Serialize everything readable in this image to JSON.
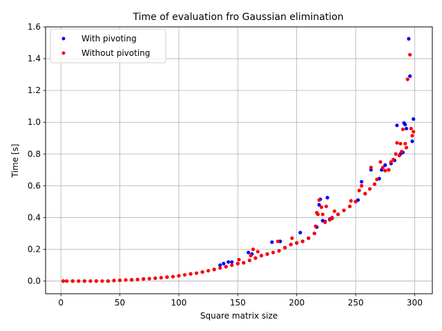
{
  "chart_data": {
    "type": "scatter",
    "title": "Time of evaluation fro Gaussian elimination",
    "xlabel": "Square matrix size",
    "ylabel": "Time [s]",
    "xlim": [
      -13,
      315
    ],
    "ylim": [
      -0.08,
      1.6
    ],
    "xticks": [
      0,
      50,
      100,
      150,
      200,
      250,
      300
    ],
    "yticks": [
      0.0,
      0.2,
      0.4,
      0.6,
      0.8,
      1.0,
      1.2,
      1.4,
      1.6
    ],
    "xtick_labels": [
      "0",
      "50",
      "100",
      "150",
      "200",
      "250",
      "300"
    ],
    "ytick_labels": [
      "0.0",
      "0.2",
      "0.4",
      "0.6",
      "0.8",
      "1.0",
      "1.2",
      "1.4",
      "1.6"
    ],
    "grid": true,
    "legend_position": "upper-left",
    "series": [
      {
        "name": "With pivoting",
        "color": "#0000ff",
        "points": [
          [
            2,
            0.0
          ],
          [
            10,
            0.0
          ],
          [
            20,
            0.0
          ],
          [
            30,
            0.0
          ],
          [
            40,
            0.0
          ],
          [
            50,
            0.005
          ],
          [
            60,
            0.008
          ],
          [
            70,
            0.013
          ],
          [
            80,
            0.018
          ],
          [
            90,
            0.025
          ],
          [
            100,
            0.033
          ],
          [
            110,
            0.045
          ],
          [
            120,
            0.057
          ],
          [
            130,
            0.073
          ],
          [
            135,
            0.1
          ],
          [
            138,
            0.11
          ],
          [
            140,
            0.09
          ],
          [
            142,
            0.12
          ],
          [
            145,
            0.12
          ],
          [
            150,
            0.11
          ],
          [
            155,
            0.115
          ],
          [
            159,
            0.18
          ],
          [
            162,
            0.17
          ],
          [
            165,
            0.145
          ],
          [
            170,
            0.16
          ],
          [
            175,
            0.17
          ],
          [
            179,
            0.245
          ],
          [
            186,
            0.25
          ],
          [
            185,
            0.19
          ],
          [
            190,
            0.21
          ],
          [
            195,
            0.23
          ],
          [
            200,
            0.24
          ],
          [
            203,
            0.305
          ],
          [
            205,
            0.25
          ],
          [
            210,
            0.27
          ],
          [
            215,
            0.3
          ],
          [
            217,
            0.34
          ],
          [
            219,
            0.48
          ],
          [
            220,
            0.515
          ],
          [
            222,
            0.38
          ],
          [
            224,
            0.375
          ],
          [
            226,
            0.525
          ],
          [
            228,
            0.39
          ],
          [
            230,
            0.395
          ],
          [
            235,
            0.42
          ],
          [
            240,
            0.445
          ],
          [
            245,
            0.47
          ],
          [
            250,
            0.5
          ],
          [
            252,
            0.51
          ],
          [
            255,
            0.625
          ],
          [
            258,
            0.55
          ],
          [
            262,
            0.58
          ],
          [
            263,
            0.7
          ],
          [
            266,
            0.61
          ],
          [
            270,
            0.645
          ],
          [
            272,
            0.7
          ],
          [
            275,
            0.73
          ],
          [
            278,
            0.7
          ],
          [
            280,
            0.74
          ],
          [
            283,
            0.76
          ],
          [
            285,
            0.98
          ],
          [
            288,
            0.8
          ],
          [
            290,
            0.81
          ],
          [
            291,
            0.995
          ],
          [
            292,
            0.985
          ],
          [
            293,
            0.96
          ],
          [
            295,
            1.525
          ],
          [
            296,
            1.29
          ],
          [
            298,
            0.88
          ],
          [
            299,
            1.02
          ]
        ]
      },
      {
        "name": "Without pivoting",
        "color": "#ff0000",
        "points": [
          [
            2,
            0.0
          ],
          [
            5,
            0.0
          ],
          [
            10,
            0.0
          ],
          [
            15,
            0.0
          ],
          [
            20,
            0.0
          ],
          [
            25,
            0.0
          ],
          [
            30,
            0.0
          ],
          [
            35,
            0.0
          ],
          [
            40,
            0.0
          ],
          [
            45,
            0.003
          ],
          [
            50,
            0.005
          ],
          [
            55,
            0.007
          ],
          [
            60,
            0.008
          ],
          [
            65,
            0.01
          ],
          [
            70,
            0.013
          ],
          [
            75,
            0.015
          ],
          [
            80,
            0.018
          ],
          [
            85,
            0.021
          ],
          [
            90,
            0.025
          ],
          [
            95,
            0.028
          ],
          [
            100,
            0.033
          ],
          [
            105,
            0.039
          ],
          [
            110,
            0.045
          ],
          [
            115,
            0.05
          ],
          [
            120,
            0.057
          ],
          [
            125,
            0.065
          ],
          [
            130,
            0.073
          ],
          [
            135,
            0.082
          ],
          [
            140,
            0.09
          ],
          [
            145,
            0.1
          ],
          [
            150,
            0.11
          ],
          [
            151,
            0.135
          ],
          [
            155,
            0.115
          ],
          [
            160,
            0.13
          ],
          [
            161,
            0.16
          ],
          [
            163,
            0.2
          ],
          [
            165,
            0.145
          ],
          [
            167,
            0.185
          ],
          [
            170,
            0.16
          ],
          [
            175,
            0.17
          ],
          [
            180,
            0.18
          ],
          [
            184,
            0.25
          ],
          [
            185,
            0.19
          ],
          [
            190,
            0.21
          ],
          [
            195,
            0.23
          ],
          [
            196,
            0.27
          ],
          [
            200,
            0.24
          ],
          [
            205,
            0.25
          ],
          [
            210,
            0.27
          ],
          [
            215,
            0.3
          ],
          [
            216,
            0.345
          ],
          [
            217,
            0.43
          ],
          [
            218,
            0.42
          ],
          [
            219,
            0.51
          ],
          [
            221,
            0.465
          ],
          [
            222,
            0.42
          ],
          [
            224,
            0.37
          ],
          [
            225,
            0.47
          ],
          [
            228,
            0.385
          ],
          [
            230,
            0.4
          ],
          [
            232,
            0.44
          ],
          [
            235,
            0.42
          ],
          [
            240,
            0.445
          ],
          [
            245,
            0.47
          ],
          [
            246,
            0.505
          ],
          [
            250,
            0.5
          ],
          [
            253,
            0.57
          ],
          [
            255,
            0.6
          ],
          [
            258,
            0.55
          ],
          [
            262,
            0.58
          ],
          [
            263,
            0.715
          ],
          [
            266,
            0.61
          ],
          [
            268,
            0.64
          ],
          [
            271,
            0.75
          ],
          [
            273,
            0.715
          ],
          [
            275,
            0.695
          ],
          [
            278,
            0.7
          ],
          [
            280,
            0.75
          ],
          [
            282,
            0.765
          ],
          [
            284,
            0.8
          ],
          [
            285,
            0.87
          ],
          [
            287,
            0.79
          ],
          [
            288,
            0.865
          ],
          [
            289,
            0.815
          ],
          [
            290,
            0.955
          ],
          [
            292,
            0.865
          ],
          [
            293,
            0.84
          ],
          [
            294,
            1.27
          ],
          [
            296,
            1.425
          ],
          [
            297,
            0.96
          ],
          [
            298,
            0.915
          ],
          [
            299,
            0.94
          ]
        ]
      }
    ]
  }
}
